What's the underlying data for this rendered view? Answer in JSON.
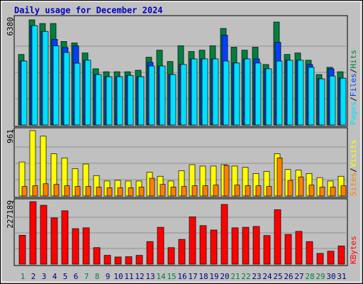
{
  "title": "Daily usage for December 2024",
  "legend_separator": "/",
  "chart_data": [
    {
      "type": "bar",
      "ylim": [
        0,
        6380
      ],
      "yticks": [
        6380
      ],
      "series": [
        {
          "name": "Hits",
          "color": "#008040",
          "values": [
            4280,
            6380,
            6160,
            6160,
            5070,
            4980,
            4370,
            3410,
            3230,
            3230,
            3230,
            3320,
            4110,
            4540,
            3850,
            4810,
            4460,
            4540,
            4810,
            5860,
            4720,
            4540,
            4720,
            3670,
            6250,
            4280,
            4370,
            3930,
            3060,
            3500,
            3230
          ]
        },
        {
          "name": "Files",
          "color": "#0040ff",
          "values": [
            3880,
            6030,
            5680,
            5200,
            4700,
            4800,
            3930,
            3060,
            2930,
            2930,
            3010,
            2930,
            3800,
            3580,
            3060,
            3670,
            4010,
            4010,
            4010,
            5450,
            3760,
            4010,
            4010,
            3410,
            5020,
            3930,
            3930,
            3670,
            2800,
            3410,
            2840
          ]
        },
        {
          "name": "Pages",
          "color": "#00e0ff",
          "values": [
            3880,
            6030,
            5680,
            4800,
            4400,
            3750,
            3930,
            3060,
            2930,
            2930,
            3010,
            2930,
            3580,
            3580,
            3060,
            3670,
            4010,
            4010,
            4010,
            3880,
            3760,
            4010,
            3760,
            3410,
            3880,
            3930,
            3930,
            3500,
            2800,
            2970,
            2840
          ]
        }
      ]
    },
    {
      "type": "bar",
      "ylim": [
        0,
        961
      ],
      "yticks": [
        961
      ],
      "series": [
        {
          "name": "Visits",
          "color": "#ffff00",
          "values": [
            500,
            961,
            880,
            620,
            560,
            400,
            470,
            300,
            220,
            230,
            220,
            220,
            350,
            290,
            220,
            370,
            460,
            440,
            440,
            460,
            440,
            420,
            330,
            360,
            620,
            390,
            380,
            330,
            270,
            220,
            290
          ]
        },
        {
          "name": "Sites",
          "color": "#ff8000",
          "values": [
            140,
            150,
            180,
            170,
            150,
            140,
            140,
            130,
            120,
            120,
            120,
            130,
            260,
            170,
            130,
            140,
            150,
            150,
            160,
            450,
            160,
            150,
            150,
            140,
            560,
            230,
            280,
            160,
            130,
            130,
            150
          ]
        }
      ]
    },
    {
      "type": "bar",
      "ylim": [
        0,
        227189
      ],
      "yticks": [
        227189
      ],
      "categories": [
        "1",
        "2",
        "3",
        "4",
        "5",
        "6",
        "7",
        "8",
        "9",
        "10",
        "11",
        "12",
        "13",
        "14",
        "15",
        "16",
        "17",
        "18",
        "19",
        "20",
        "21",
        "22",
        "23",
        "24",
        "25",
        "26",
        "27",
        "28",
        "29",
        "30",
        "31"
      ],
      "category_colors": [
        "#008040",
        "#000080",
        "#000080",
        "#000080",
        "#000080",
        "#000080",
        "#008040",
        "#008040",
        "#000080",
        "#000080",
        "#000080",
        "#000080",
        "#000080",
        "#008040",
        "#008040",
        "#000080",
        "#000080",
        "#000080",
        "#000080",
        "#000080",
        "#008040",
        "#008040",
        "#000080",
        "#000080",
        "#000080",
        "#000080",
        "#000080",
        "#008040",
        "#008040",
        "#000080",
        "#000080"
      ],
      "series": [
        {
          "name": "KBytes",
          "color": "#ff0000",
          "values": [
            105000,
            227189,
            214000,
            168000,
            194000,
            129000,
            132000,
            60000,
            32000,
            26000,
            27000,
            32000,
            82000,
            134000,
            60000,
            90000,
            172000,
            140000,
            124000,
            217000,
            132000,
            134000,
            137000,
            104000,
            198000,
            108000,
            119000,
            82000,
            39000,
            47000,
            66000
          ]
        }
      ]
    }
  ]
}
